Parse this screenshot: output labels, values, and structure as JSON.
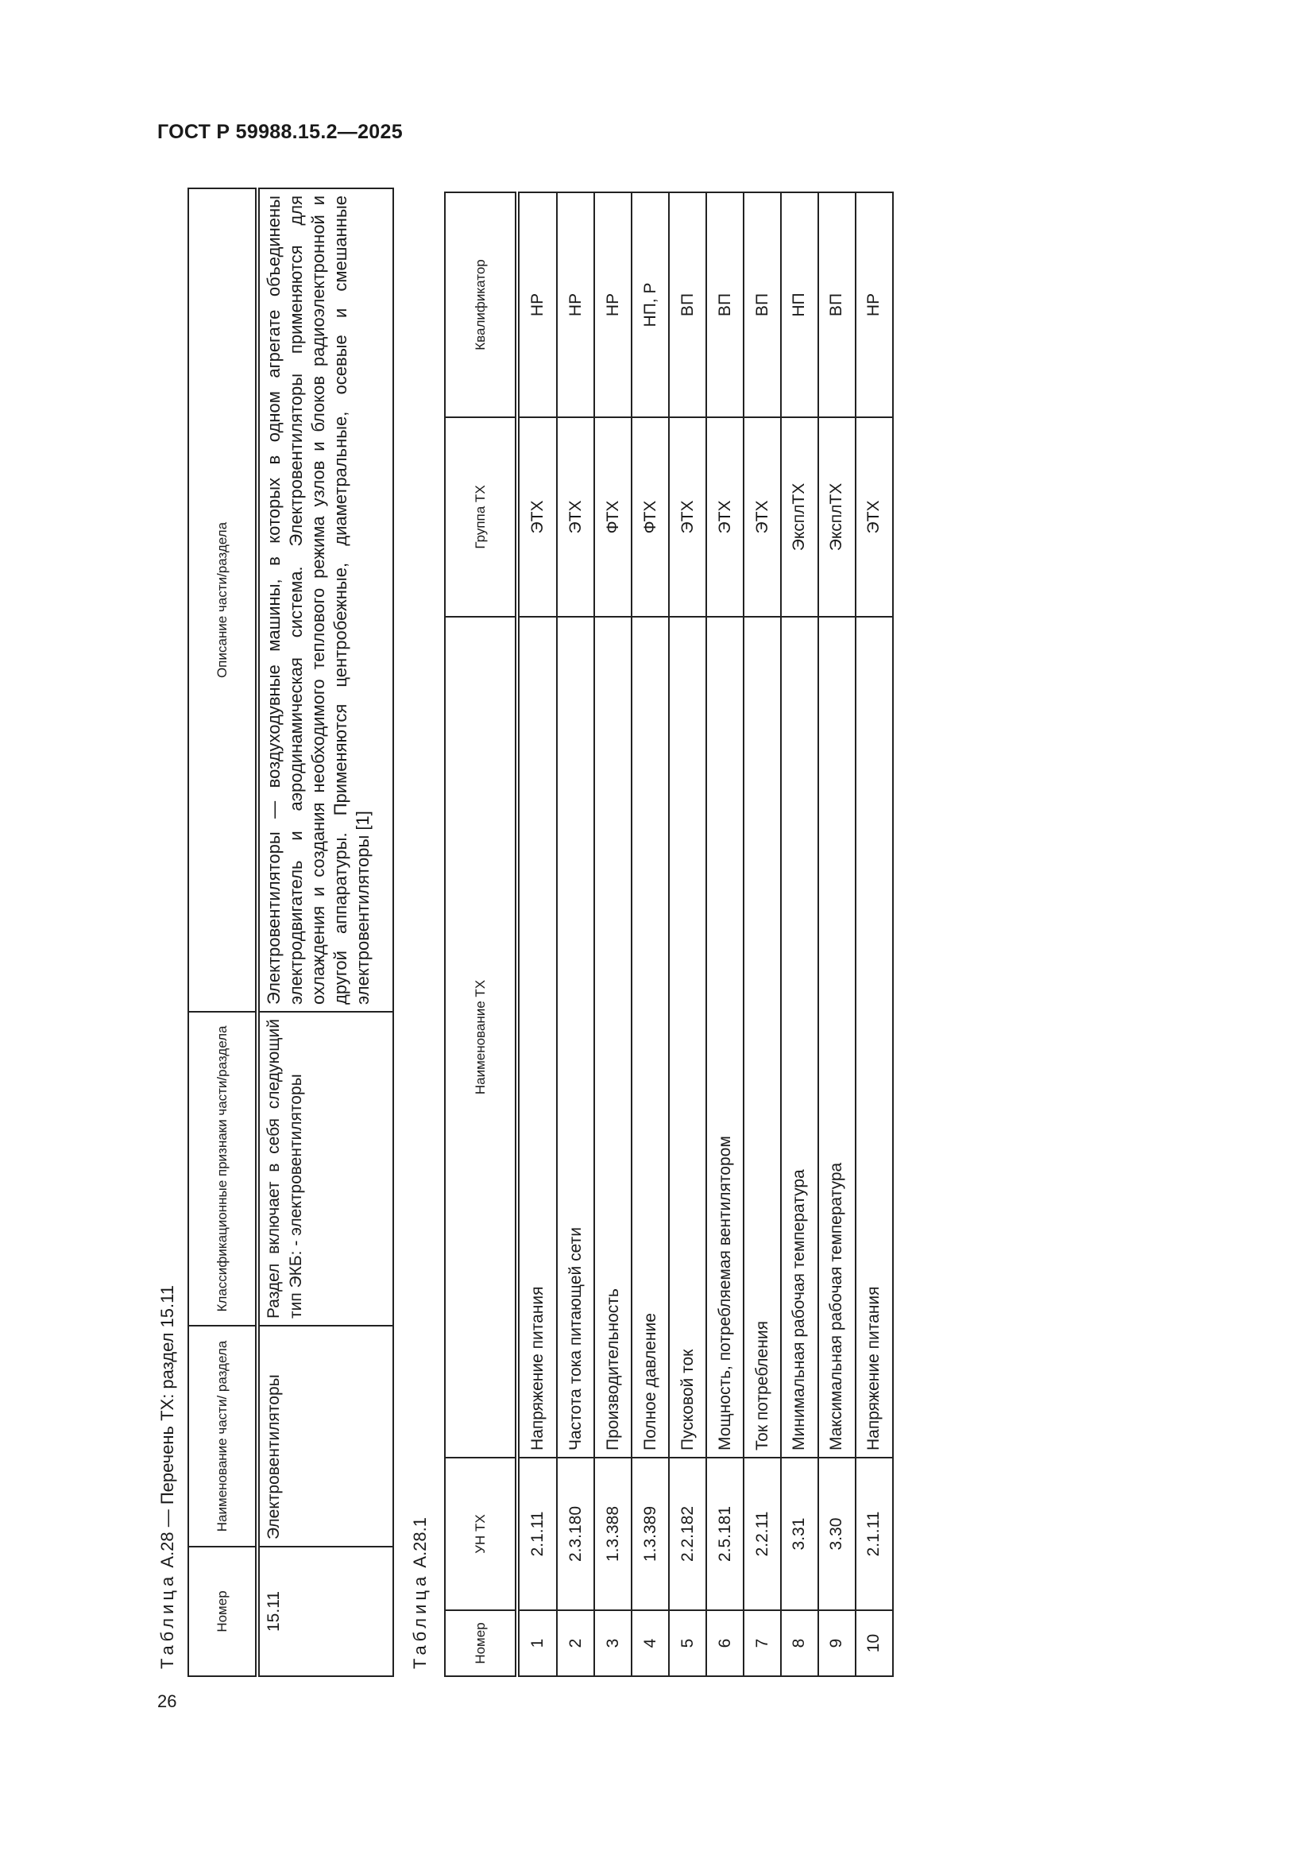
{
  "header": {
    "title": "ГОСТ Р 59988.15.2—2025"
  },
  "page_number": "26",
  "table_a28": {
    "caption_prefix": "Таблица",
    "caption_text": "А.28 — Перечень ТХ: раздел 15.11",
    "columns": [
      "Номер",
      "Наименование части/ раздела",
      "Классификационные признаки части/раздела",
      "Описание части/раздела"
    ],
    "row": {
      "number": "15.11",
      "name": "Электровентиляторы",
      "classification": "Раздел включает в себя следующий тип ЭКБ: - электровентиляторы",
      "description": "Электровентиляторы — воздуходувные машины, в которых в одном агрегате объединены электродвигатель и аэродинамическая система. Электровентиляторы применяются для охлаждения и создания необходимого теплового режима узлов и блоков радиоэлектронной и другой аппаратуры. Применяются центробежные, диаметральные, осевые и смешанные электровентиляторы [1]"
    }
  },
  "table_a28_1": {
    "caption_prefix": "Таблица",
    "caption_text": "А.28.1",
    "columns": [
      "Номер",
      "УН ТХ",
      "Наименование ТХ",
      "Группа ТХ",
      "Квалификатор"
    ],
    "rows": [
      [
        "1",
        "2.1.11",
        "Напряжение питания",
        "ЭТХ",
        "НР"
      ],
      [
        "2",
        "2.3.180",
        "Частота тока питающей сети",
        "ЭТХ",
        "НР"
      ],
      [
        "3",
        "1.3.388",
        "Производительность",
        "ФТХ",
        "НР"
      ],
      [
        "4",
        "1.3.389",
        "Полное давление",
        "ФТХ",
        "НП, Р"
      ],
      [
        "5",
        "2.2.182",
        "Пусковой ток",
        "ЭТХ",
        "ВП"
      ],
      [
        "6",
        "2.5.181",
        "Мощность, потребляемая вентилятором",
        "ЭТХ",
        "ВП"
      ],
      [
        "7",
        "2.2.11",
        "Ток потребления",
        "ЭТХ",
        "ВП"
      ],
      [
        "8",
        "3.31",
        "Минимальная рабочая температура",
        "ЭксплТХ",
        "НП"
      ],
      [
        "9",
        "3.30",
        "Максимальная рабочая температура",
        "ЭксплТХ",
        "ВП"
      ],
      [
        "10",
        "2.1.11",
        "Напряжение питания",
        "ЭТХ",
        "НР"
      ]
    ]
  }
}
